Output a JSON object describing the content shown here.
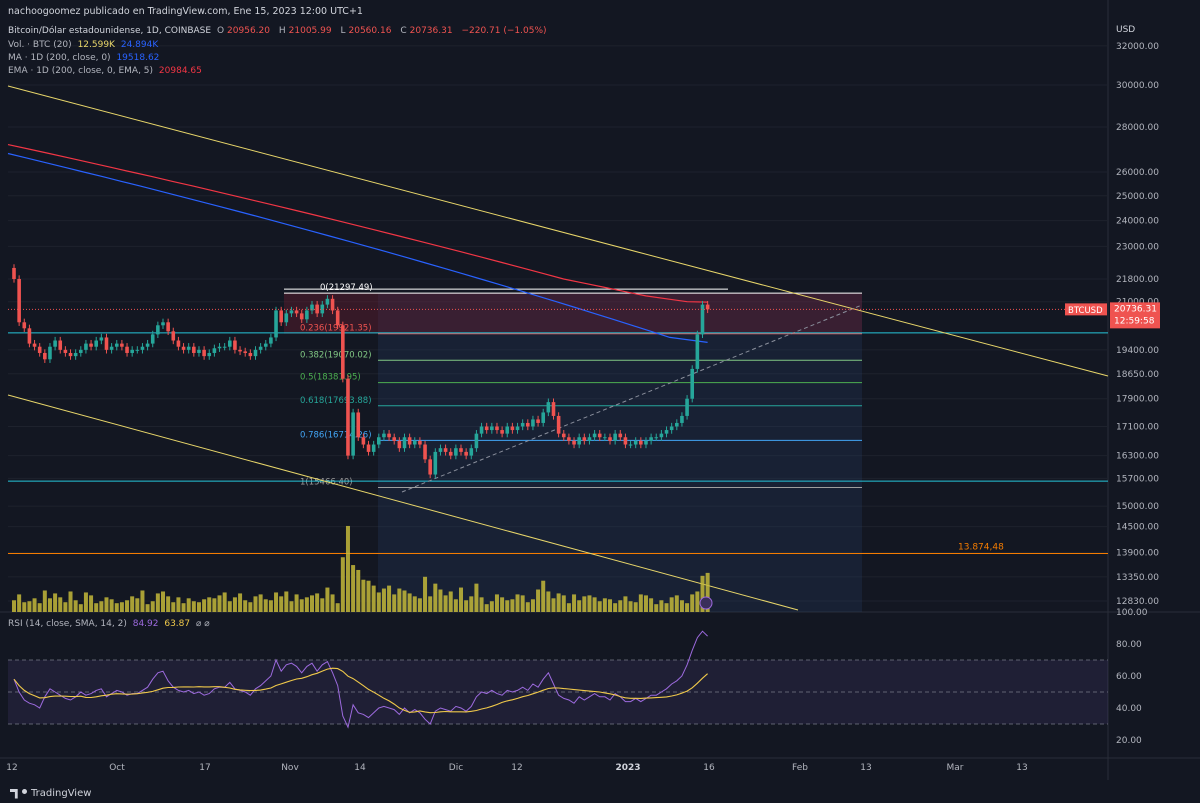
{
  "publisher": "nachoogoomez publicado en TradingView.com, Ene 15, 2023 12:00 UTC+1",
  "legend": {
    "symbol": "Bitcoin/Dólar estadounidense, 1D, COINBASE",
    "o_label": "O",
    "o": "20956.20",
    "h_label": "H",
    "h": "21005.99",
    "l_label": "L",
    "l": "20560.16",
    "c_label": "C",
    "c": "20736.31",
    "change": "−220.71 (−1.05%)",
    "vol_label": "Vol. · BTC (20)",
    "vol": "12.599K",
    "vol_ma": "24.894K",
    "ma_label": "MA · 1D (200, close, 0)",
    "ma": "19518.62",
    "ema_label": "EMA · 1D (200, close, 0, EMA, 5)",
    "ema": "20984.65",
    "rsi_label": "RSI (14, close, SMA, 14, 2)",
    "rsi": "84.92",
    "rsi_ma": "63.87",
    "rsi_extra": "⌀ ⌀"
  },
  "brand": "TradingView",
  "colors": {
    "up": "#26a69a",
    "down": "#ef5350",
    "ma": "#2962ff",
    "ema": "#f23645",
    "trend": "#e8d66a",
    "volume": "#c4b93a",
    "rsi": "#9c6ade",
    "rsi_ma": "#f0c94a",
    "cyan": "#26c6da",
    "orange": "#f57c00"
  },
  "chart_data": {
    "type": "candlestick",
    "currency_label": "USD",
    "price_axis_ticks": [
      "32000.00",
      "30000.00",
      "28000.00",
      "26000.00",
      "25000.00",
      "24000.00",
      "23000.00",
      "21800.00",
      "21000.00",
      "19400.00",
      "18650.00",
      "17900.00",
      "17100.00",
      "16300.00",
      "15700.00",
      "15000.00",
      "14500.00",
      "13900.00",
      "13350.00",
      "12830.00"
    ],
    "rsi_axis_ticks": [
      "100.00",
      "80.00",
      "60.00",
      "40.00",
      "20.00"
    ],
    "time_axis_labels": [
      "12",
      "Oct",
      "17",
      "Nov",
      "14",
      "Dic",
      "12",
      "2023",
      "16",
      "Feb",
      "13",
      "Mar",
      "13"
    ],
    "last_price_tag": {
      "symbol": "BTCUSD",
      "price": "20736.31",
      "countdown": "12:59:58"
    },
    "fibonacci": [
      {
        "level": "0",
        "price": "21297.49"
      },
      {
        "level": "0.236",
        "price": "19921.35"
      },
      {
        "level": "0.382",
        "price": "19070.02"
      },
      {
        "level": "0.5",
        "price": "18381.95"
      },
      {
        "level": "0.618",
        "price": "17693.88"
      },
      {
        "level": "0.786",
        "price": "16714.26"
      },
      {
        "level": "1",
        "price": "15466.40"
      }
    ],
    "horizontal_lines": [
      {
        "price": 19950,
        "color": "cyan"
      },
      {
        "price": 15630,
        "color": "cyan"
      },
      {
        "label": "13.874,48",
        "price": 13874.48,
        "color": "orange"
      }
    ],
    "closes": [
      21800,
      20300,
      20100,
      19600,
      19500,
      19300,
      19100,
      19500,
      19700,
      19400,
      19300,
      19200,
      19300,
      19400,
      19600,
      19500,
      19700,
      19800,
      19400,
      19500,
      19600,
      19500,
      19300,
      19400,
      19400,
      19500,
      19600,
      19900,
      20200,
      20300,
      20000,
      19700,
      19500,
      19400,
      19500,
      19300,
      19400,
      19200,
      19300,
      19450,
      19500,
      19500,
      19700,
      19400,
      19350,
      19300,
      19200,
      19400,
      19500,
      19600,
      19800,
      20700,
      20300,
      20600,
      20700,
      20600,
      20400,
      20700,
      20900,
      20600,
      20900,
      21100,
      20700,
      20200,
      18500,
      16300,
      17500,
      16800,
      16600,
      16400,
      16600,
      16800,
      16900,
      16800,
      16700,
      16500,
      16800,
      16600,
      16700,
      16600,
      16200,
      15800,
      16400,
      16500,
      16400,
      16300,
      16500,
      16400,
      16300,
      16500,
      16900,
      17100,
      17000,
      17100,
      17000,
      16900,
      17100,
      17000,
      17100,
      17200,
      17100,
      17300,
      17200,
      17500,
      17800,
      17400,
      16900,
      16800,
      16700,
      16600,
      16800,
      16700,
      16800,
      16900,
      16800,
      16800,
      16700,
      16900,
      16800,
      16600,
      16600,
      16700,
      16600,
      16700,
      16800,
      16800,
      16900,
      17000,
      17100,
      17200,
      17400,
      17900,
      18800,
      19900,
      20900,
      20736
    ],
    "volumes": [
      12,
      18,
      10,
      11,
      14,
      9,
      22,
      14,
      19,
      15,
      10,
      21,
      12,
      8,
      20,
      17,
      9,
      11,
      15,
      13,
      9,
      10,
      12,
      16,
      14,
      22,
      8,
      11,
      19,
      21,
      16,
      10,
      15,
      9,
      14,
      11,
      10,
      13,
      15,
      14,
      17,
      20,
      11,
      15,
      19,
      12,
      10,
      16,
      18,
      13,
      12,
      20,
      16,
      21,
      11,
      18,
      13,
      15,
      17,
      19,
      14,
      25,
      18,
      9,
      56,
      88,
      48,
      43,
      33,
      32,
      27,
      20,
      24,
      27,
      18,
      24,
      22,
      19,
      16,
      14,
      36,
      16,
      29,
      23,
      17,
      21,
      13,
      25,
      12,
      16,
      29,
      15,
      8,
      11,
      18,
      15,
      12,
      13,
      18,
      17,
      10,
      13,
      23,
      32,
      21,
      14,
      19,
      17,
      9,
      18,
      12,
      16,
      17,
      15,
      11,
      14,
      13,
      9,
      12,
      16,
      11,
      10,
      18,
      17,
      14,
      8,
      12,
      9,
      15,
      17,
      12,
      9,
      18,
      21,
      37,
      40
    ],
    "ma200": [
      26800,
      26600,
      26400,
      26200,
      26000,
      25800,
      25600,
      25400,
      25200,
      25000,
      24800,
      24600,
      24400,
      24200,
      24000,
      23800,
      23600,
      23400,
      23200,
      23000,
      22800,
      22600,
      22400,
      22200,
      22000,
      21800,
      21600,
      21400,
      21200,
      21000,
      20800,
      20600,
      20400,
      20200,
      20000,
      19800,
      19720,
      19640
    ],
    "ema200": [
      27200,
      27000,
      26800,
      26600,
      26400,
      26200,
      26000,
      25800,
      25600,
      25400,
      25200,
      25000,
      24800,
      24600,
      24400,
      24200,
      24000,
      23800,
      23600,
      23400,
      23200,
      23000,
      22800,
      22600,
      22400,
      22200,
      22000,
      21800,
      21650,
      21500,
      21350,
      21200,
      21100,
      21000,
      20985
    ],
    "rsi": [
      58,
      50,
      45,
      43,
      42,
      40,
      47,
      52,
      50,
      48,
      46,
      45,
      47,
      50,
      48,
      49,
      51,
      52,
      47,
      49,
      51,
      50,
      48,
      49,
      49,
      51,
      53,
      58,
      62,
      63,
      57,
      53,
      51,
      50,
      51,
      49,
      50,
      48,
      49,
      52,
      53,
      53,
      56,
      52,
      51,
      50,
      48,
      52,
      54,
      57,
      60,
      70,
      63,
      67,
      68,
      66,
      62,
      66,
      68,
      63,
      67,
      69,
      62,
      54,
      35,
      28,
      42,
      37,
      36,
      34,
      37,
      40,
      41,
      40,
      39,
      36,
      40,
      37,
      39,
      37,
      33,
      30,
      38,
      40,
      39,
      38,
      41,
      40,
      38,
      41,
      47,
      50,
      49,
      51,
      49,
      48,
      51,
      50,
      51,
      53,
      51,
      55,
      53,
      58,
      62,
      55,
      48,
      46,
      45,
      43,
      47,
      45,
      47,
      49,
      47,
      47,
      45,
      49,
      47,
      44,
      44,
      46,
      44,
      46,
      48,
      48,
      50,
      52,
      55,
      57,
      60,
      67,
      76,
      84,
      88,
      84.92
    ],
    "rsi_bands": [
      70,
      50,
      30
    ],
    "price_range": [
      12600,
      33500
    ],
    "rsi_range": [
      10,
      100
    ],
    "grid": true
  }
}
